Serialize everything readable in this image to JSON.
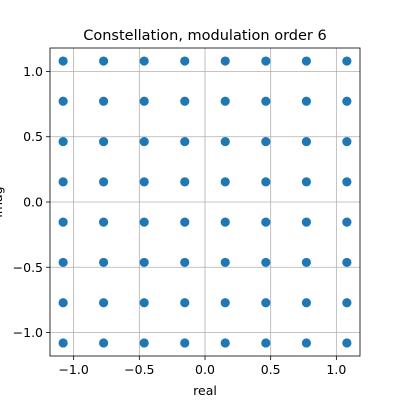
{
  "chart_data": {
    "type": "scatter",
    "title": "Constellation, modulation order 6",
    "xlabel": "real",
    "ylabel": "imag",
    "xlim": [
      -1.18,
      1.18
    ],
    "ylim": [
      -1.18,
      1.18
    ],
    "xticks": [
      -1.0,
      -0.5,
      0.0,
      0.5,
      1.0
    ],
    "xtick_labels": [
      "−1.0",
      "−0.5",
      "0.0",
      "0.5",
      "1.0"
    ],
    "yticks": [
      -1.0,
      -0.5,
      0.0,
      0.5,
      1.0
    ],
    "ytick_labels": [
      "−1.0",
      "−0.5",
      "0.0",
      "0.5",
      "1.0"
    ],
    "grid": true,
    "marker_color": "#1f77b4",
    "levels": [
      -1.08,
      -0.772,
      -0.463,
      -0.154,
      0.154,
      0.463,
      0.772,
      1.08
    ],
    "series": [
      {
        "x": [
          -1.08,
          -0.772,
          -0.463,
          -0.154,
          0.154,
          0.463,
          0.772,
          1.08,
          -1.08,
          -0.772,
          -0.463,
          -0.154,
          0.154,
          0.463,
          0.772,
          1.08,
          -1.08,
          -0.772,
          -0.463,
          -0.154,
          0.154,
          0.463,
          0.772,
          1.08,
          -1.08,
          -0.772,
          -0.463,
          -0.154,
          0.154,
          0.463,
          0.772,
          1.08,
          -1.08,
          -0.772,
          -0.463,
          -0.154,
          0.154,
          0.463,
          0.772,
          1.08,
          -1.08,
          -0.772,
          -0.463,
          -0.154,
          0.154,
          0.463,
          0.772,
          1.08,
          -1.08,
          -0.772,
          -0.463,
          -0.154,
          0.154,
          0.463,
          0.772,
          1.08,
          -1.08,
          -0.772,
          -0.463,
          -0.154,
          0.154,
          0.463,
          0.772,
          1.08
        ],
        "y": [
          1.08,
          1.08,
          1.08,
          1.08,
          1.08,
          1.08,
          1.08,
          1.08,
          0.772,
          0.772,
          0.772,
          0.772,
          0.772,
          0.772,
          0.772,
          0.772,
          0.463,
          0.463,
          0.463,
          0.463,
          0.463,
          0.463,
          0.463,
          0.463,
          0.154,
          0.154,
          0.154,
          0.154,
          0.154,
          0.154,
          0.154,
          0.154,
          -0.154,
          -0.154,
          -0.154,
          -0.154,
          -0.154,
          -0.154,
          -0.154,
          -0.154,
          -0.463,
          -0.463,
          -0.463,
          -0.463,
          -0.463,
          -0.463,
          -0.463,
          -0.463,
          -0.772,
          -0.772,
          -0.772,
          -0.772,
          -0.772,
          -0.772,
          -0.772,
          -0.772,
          -1.08,
          -1.08,
          -1.08,
          -1.08,
          -1.08,
          -1.08,
          -1.08,
          -1.08
        ]
      }
    ]
  }
}
